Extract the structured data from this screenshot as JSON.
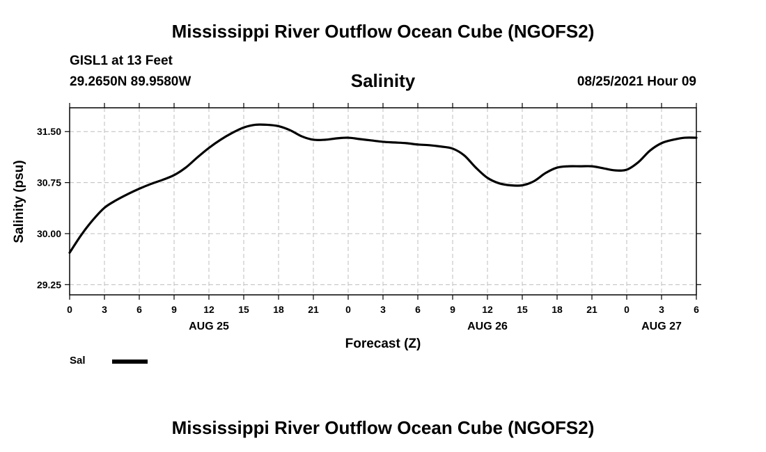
{
  "header": {
    "title_top": "Mississippi River Outflow Ocean Cube (NGOFS2)",
    "station": "GISL1 at 13 Feet",
    "coords": "29.2650N  89.9580W",
    "variable": "Salinity",
    "datetime": "08/25/2021 Hour 09",
    "title_bottom": "Mississippi River Outflow Ocean Cube (NGOFS2)"
  },
  "legend": {
    "label": "Sal",
    "color": "#000000"
  },
  "chart_data": {
    "type": "line",
    "title": "Salinity",
    "xlabel": "Forecast (Z)",
    "ylabel": "Salinity (psu)",
    "xlim": [
      0,
      54
    ],
    "ylim": [
      29.1,
      31.85
    ],
    "grid": true,
    "x_ticks": [
      {
        "x": 0,
        "label": "0"
      },
      {
        "x": 3,
        "label": "3"
      },
      {
        "x": 6,
        "label": "6"
      },
      {
        "x": 9,
        "label": "9"
      },
      {
        "x": 12,
        "label": "12"
      },
      {
        "x": 15,
        "label": "15"
      },
      {
        "x": 18,
        "label": "18"
      },
      {
        "x": 21,
        "label": "21"
      },
      {
        "x": 24,
        "label": "0"
      },
      {
        "x": 27,
        "label": "3"
      },
      {
        "x": 30,
        "label": "6"
      },
      {
        "x": 33,
        "label": "9"
      },
      {
        "x": 36,
        "label": "12"
      },
      {
        "x": 39,
        "label": "15"
      },
      {
        "x": 42,
        "label": "18"
      },
      {
        "x": 45,
        "label": "21"
      },
      {
        "x": 48,
        "label": "0"
      },
      {
        "x": 51,
        "label": "3"
      },
      {
        "x": 54,
        "label": "6"
      }
    ],
    "date_labels": [
      {
        "x": 12,
        "label": "AUG 25"
      },
      {
        "x": 36,
        "label": "AUG 26"
      },
      {
        "x": 51,
        "label": "AUG 27"
      }
    ],
    "y_ticks": [
      {
        "y": 29.25,
        "label": "29.25"
      },
      {
        "y": 30.0,
        "label": "30.00"
      },
      {
        "y": 30.75,
        "label": "30.75"
      },
      {
        "y": 31.5,
        "label": "31.50"
      }
    ],
    "series": [
      {
        "name": "Sal",
        "color": "#000000",
        "x": [
          0,
          1,
          2,
          3,
          4,
          5,
          6,
          7,
          8,
          9,
          10,
          11,
          12,
          13,
          14,
          15,
          16,
          17,
          18,
          19,
          20,
          21,
          22,
          23,
          24,
          25,
          26,
          27,
          28,
          29,
          30,
          31,
          32,
          33,
          34,
          35,
          36,
          37,
          38,
          39,
          40,
          41,
          42,
          43,
          44,
          45,
          46,
          47,
          48,
          49,
          50,
          51,
          52,
          53,
          54
        ],
        "values": [
          29.72,
          29.98,
          30.2,
          30.38,
          30.49,
          30.58,
          30.66,
          30.73,
          30.79,
          30.86,
          30.97,
          31.12,
          31.26,
          31.38,
          31.48,
          31.56,
          31.6,
          31.6,
          31.58,
          31.52,
          31.43,
          31.38,
          31.38,
          31.4,
          31.41,
          31.39,
          31.37,
          31.35,
          31.34,
          31.33,
          31.31,
          31.3,
          31.28,
          31.25,
          31.15,
          30.97,
          30.82,
          30.74,
          30.71,
          30.71,
          30.77,
          30.89,
          30.97,
          30.99,
          30.99,
          30.99,
          30.96,
          30.93,
          30.94,
          31.05,
          31.22,
          31.33,
          31.38,
          31.41,
          31.41
        ]
      }
    ]
  }
}
